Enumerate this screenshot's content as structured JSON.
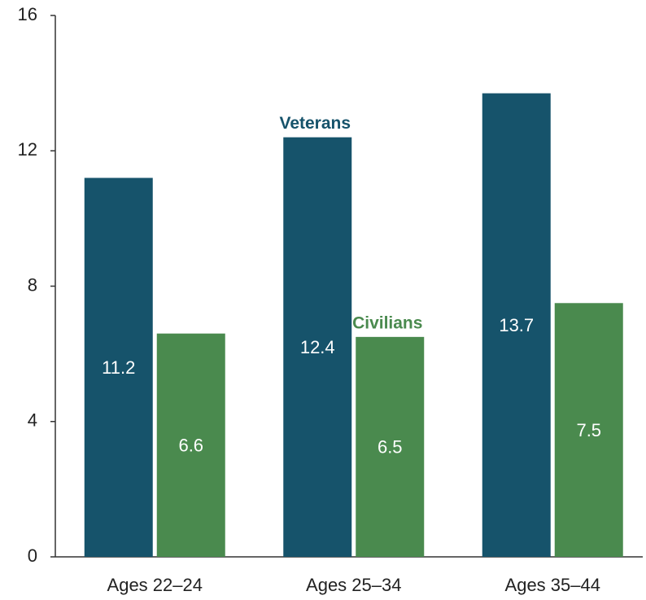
{
  "chart_data": {
    "type": "bar",
    "categories": [
      "Ages 22–24",
      "Ages 25–34",
      "Ages 35–44"
    ],
    "series": [
      {
        "name": "Veterans",
        "color": "#16536b",
        "values": [
          11.2,
          12.4,
          13.7
        ]
      },
      {
        "name": "Civilians",
        "color": "#4a8a4e",
        "values": [
          6.6,
          6.5,
          7.5
        ]
      }
    ],
    "ylim": [
      0,
      16
    ],
    "yticks": [
      0,
      4,
      8,
      12,
      16
    ],
    "grid": false
  }
}
